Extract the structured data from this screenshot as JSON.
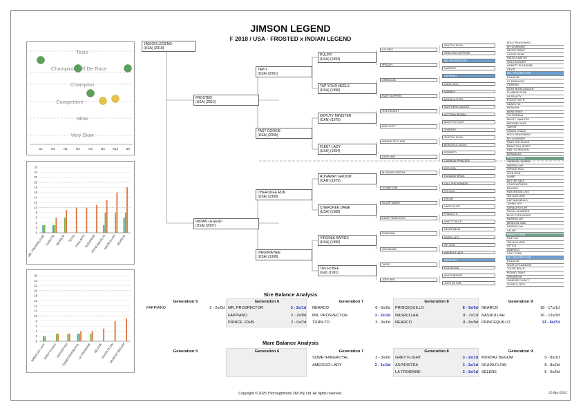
{
  "header": {
    "title": "JIMSON LEGEND",
    "subtitle": "F 2018 / USA · FROSTED x INDIAN LEGEND"
  },
  "dosage": {
    "bands": [
      "Tesio",
      "Champion",
      "Champion",
      "Competitive",
      "Slow",
      "Very Slow"
    ],
    "inline_labels": [
      "Chef De Race"
    ],
    "x_labels": [
      "S1",
      "E9",
      "N1",
      "N2",
      "N3",
      "N5",
      "N12",
      "N9"
    ],
    "points": [
      {
        "x": "S1",
        "level": "Tesio",
        "color": "green"
      },
      {
        "x": "E9",
        "level": "Tesio",
        "color": "green"
      },
      {
        "x": "S1",
        "level": "Champion/Chef",
        "color": "green"
      },
      {
        "x": "N2",
        "level": "Champion/Chef",
        "color": "green"
      },
      {
        "x": "N9",
        "level": "Champion/Chef",
        "color": "green"
      },
      {
        "x": "N3",
        "level": "Champion",
        "color": "green"
      },
      {
        "x": "N5",
        "level": "Competitive",
        "color": "yellow"
      },
      {
        "x": "N12",
        "level": "Competitive",
        "color": "yellow"
      }
    ]
  },
  "chart_data": [
    {
      "type": "bar",
      "y_ticks": [
        0,
        2,
        4,
        6,
        8,
        10,
        12,
        14,
        16,
        18,
        20,
        22,
        24,
        26
      ],
      "categories": [
        "MR. PROSPECTOR",
        "TURN-TO",
        "NEARCO",
        "TESIO",
        "PHALARIS",
        "BLENHEIM",
        "PRINCEQUILLO",
        "NASRULLAH",
        "NEARCO"
      ],
      "series": [
        {
          "color": "#3aa0a0",
          "values": [
            3,
            3,
            0,
            0,
            0,
            0,
            3,
            0,
            6
          ]
        },
        {
          "color": "#7ab648",
          "values": [
            3,
            3,
            6,
            0,
            0,
            0,
            8,
            8,
            8
          ]
        },
        {
          "color": "#e07a45",
          "values": [
            0,
            6,
            9,
            10,
            10,
            11,
            13,
            16,
            18
          ]
        }
      ]
    },
    {
      "type": "bar",
      "y_ticks": [
        0,
        2,
        4,
        6,
        8,
        10,
        12,
        14,
        16,
        18,
        20,
        22,
        24,
        26
      ],
      "categories": [
        "AMERIGO LADY",
        "GREY FLIGHT",
        "ASPIDISTRA",
        "SOMETHINGROYAL",
        "LA TROIENNE",
        "SELENE",
        "SCAPA FLOW",
        "MUMTAZ BEGUM"
      ],
      "series": [
        {
          "color": "#3aa0a0",
          "values": [
            2,
            0,
            0,
            3,
            0,
            0,
            0,
            0
          ]
        },
        {
          "color": "#7ab648",
          "values": [
            2,
            3,
            3,
            3,
            3,
            0,
            0,
            0
          ]
        },
        {
          "color": "#e07a45",
          "values": [
            0,
            3,
            3,
            4,
            4,
            5,
            8,
            9
          ]
        }
      ]
    }
  ],
  "pedigree": {
    "g1": [
      {
        "name": "JIMSON LEGEND",
        "info": "(USA) (2018)"
      }
    ],
    "g2": [
      {
        "name": "FROSTED",
        "info": "(USA) (2012)"
      },
      {
        "name": "INDIAN LEGEND",
        "info": "(USA) (2007)"
      }
    ],
    "g3": [
      {
        "name": "TAPIT",
        "info": "(USA) (2001)"
      },
      {
        "name": "FAST COOKIE",
        "info": "(USA) (2000)"
      },
      {
        "name": "CHEROKEE RUN",
        "info": "(USA) (1990)"
      },
      {
        "name": "VIRGINIA BEE",
        "info": "(USA) (1998)"
      }
    ],
    "g4": [
      {
        "name": "PULPIT",
        "info": "(USA) (1994)"
      },
      {
        "name": "TAP YOUR HEELS",
        "info": "(USA) (1996)"
      },
      {
        "name": "DEPUTY MINISTER",
        "info": "(CAN) (1979)"
      },
      {
        "name": "FLEET LADY",
        "info": "(USA) (1994)"
      },
      {
        "name": "RUNAWAY GROOM",
        "info": "(CAN) (1979)"
      },
      {
        "name": "CHEROKEE DAME",
        "info": "(USA) (1980)"
      },
      {
        "name": "VIRGINIA RAPIDS",
        "info": "(USA) (1990)"
      },
      {
        "name": "TASSO BEE",
        "info": "(null) (1991)"
      }
    ],
    "g5": [
      "A.P. INDY",
      "PREACH",
      "UNBRIDLED",
      "RUBY SLIPPERS",
      "VICE REGENT",
      "MINT COPY",
      "AVENUE OF FLAGS",
      "DEAR MIMI",
      "BLUSHING GROOM",
      "YONNIE GIRL",
      "SILVER SABER",
      "DAME FRANCESCA",
      "RIVERMAN",
      "VIRGINIANA",
      "TASSO",
      "JOE'S BEE"
    ],
    "g6": [
      {
        "n": "SEATTLE SLEW"
      },
      {
        "n": "WEEKEND SURPRISE"
      },
      {
        "n": "MR. PROSPECTOR",
        "hl": "blue"
      },
      {
        "n": "NARRATE"
      },
      {
        "n": "FAPPIANO",
        "hl": "blue"
      },
      {
        "n": "GANA FACIL"
      },
      {
        "n": "NIJINSKY"
      },
      {
        "n": "MOON GLITTER"
      },
      {
        "n": "NORTHERN DANCER"
      },
      {
        "n": "VICTORIA REGINA"
      },
      {
        "n": "BUNTY'S FLIGHT"
      },
      {
        "n": "SHARNEY"
      },
      {
        "n": "SEATTLE SLEW"
      },
      {
        "n": "BEAUTIFUL GLASS"
      },
      {
        "n": "ROBERTO"
      },
      {
        "n": "CARNIVAL PRINCESS"
      },
      {
        "n": "RED GOD"
      },
      {
        "n": "RUNAWAY BRIDE"
      },
      {
        "n": "CALL THE WITNESS"
      },
      {
        "n": "POCHILE"
      },
      {
        "n": "DRONE"
      },
      {
        "n": "HAPPY FLIRT"
      },
      {
        "n": "FRANCIS S."
      },
      {
        "n": "MAID TO RULE"
      },
      {
        "n": "NEVER BEND"
      },
      {
        "n": "RIVER LADY"
      },
      {
        "n": "SIR IVOR"
      },
      {
        "n": "AMERIGO LADY"
      },
      {
        "n": "FAPPIANO",
        "hl": "blue"
      },
      {
        "n": "ECSTACISM"
      },
      {
        "n": "KING'S BISHOP"
      },
      {
        "n": "JOE'S LIL GIRL"
      }
    ],
    "g7": [
      {
        "n": "BOLD REASONING"
      },
      {
        "n": "MY CHARMER"
      },
      {
        "n": "SECRETARIAT"
      },
      {
        "n": "LASSIE DEAR"
      },
      {
        "n": "RAISE A NATIVE"
      },
      {
        "n": "GOLD DIGGER"
      },
      {
        "n": "HONEST PLEASURE"
      },
      {
        "n": "STATE"
      },
      {
        "n": "MR. PROSPECTOR",
        "hl": "blue"
      },
      {
        "n": "KILLALOE"
      },
      {
        "n": "LE FABULEUX"
      },
      {
        "n": "CHAREDI"
      },
      {
        "n": "NORTHERN DANCER"
      },
      {
        "n": "FLAMING PAGE"
      },
      {
        "n": "IN REALITY"
      },
      {
        "n": "FOGGY NOTE"
      },
      {
        "n": "NEARCTIC"
      },
      {
        "n": "NATALMA"
      },
      {
        "n": "MENETRIER"
      },
      {
        "n": "VICTORIANA"
      },
      {
        "n": "BUNTY LAWLESS"
      },
      {
        "n": "BROOMFLIGHT"
      },
      {
        "n": "JAIPUR"
      },
      {
        "n": "GRASS SHACK"
      },
      {
        "n": "BOLD REASONING"
      },
      {
        "n": "MY CHARMER"
      },
      {
        "n": "PASS THE GLASS"
      },
      {
        "n": "BEAUTIFUL SPIRIT"
      },
      {
        "n": "HAIL TO REASON"
      },
      {
        "n": "BRAMALEA"
      },
      {
        "n": "PRINCE JOHN",
        "hl": "green"
      },
      {
        "n": "CARNIVAL QUEEN"
      },
      {
        "n": "NASRULLAH"
      },
      {
        "n": "SPRING RUN"
      },
      {
        "n": "WILD RISK"
      },
      {
        "n": "AIMEE"
      },
      {
        "n": "BETTER SELF"
      },
      {
        "n": "COUR WITNESS"
      },
      {
        "n": "BOLERO"
      },
      {
        "n": "RUE AROUE-OUS"
      },
      {
        "n": "SIR GAYLORD"
      },
      {
        "n": "CAP AND BELLS"
      },
      {
        "n": "JOHNS JOY"
      },
      {
        "n": "SARACEN FLIRT"
      },
      {
        "n": "ROYAL CHARGER"
      },
      {
        "n": "BLUE EYED MOMO"
      },
      {
        "n": "NASRULLAH"
      },
      {
        "n": "MEADOW MAID"
      },
      {
        "n": "NASRULLAH"
      },
      {
        "n": "LALUN"
      },
      {
        "n": "PRINCE JOHN",
        "hl": "green"
      },
      {
        "n": "NILE LILY"
      },
      {
        "n": "SIR GAYLORD"
      },
      {
        "n": "ATTICA"
      },
      {
        "n": "AMERIGO"
      },
      {
        "n": "LADY SYBIL"
      },
      {
        "n": "MR. PROSPECTOR",
        "hl": "blue"
      },
      {
        "n": "KILLALOE"
      },
      {
        "n": "WHAT A PLEASURE"
      },
      {
        "n": "TOUTE BELLE"
      },
      {
        "n": "ROUND TABLE"
      },
      {
        "n": "SPEARFISH"
      },
      {
        "n": "SUNRISE FLIGHT"
      },
      {
        "n": "SUSIE Q. RICE"
      }
    ]
  },
  "sire_balance": {
    "title": "Sire Balance Analysis",
    "gens": [
      {
        "head": "Generation 5",
        "shaded": false,
        "rows": [
          {
            "name": "FAPPIANO",
            "val": "2 - 2s/0d",
            "hl": false
          }
        ]
      },
      {
        "head": "Generation 6",
        "shaded": true,
        "rows": [
          {
            "name": "MR. PROSPECTOR",
            "val": "3 - 2s/1d",
            "hl": true
          },
          {
            "name": "FAPPIANO",
            "val": "2 - 2s/0d",
            "hl": false
          },
          {
            "name": "PRINCE JOHN",
            "val": "2 - 0s/2d",
            "hl": false
          }
        ]
      },
      {
        "head": "Generation 7",
        "shaded": false,
        "rows": [
          {
            "name": "NEARCO",
            "val": "6 - 6s/0d",
            "hl": false
          },
          {
            "name": "MR. PROSPECTOR",
            "val": "3 - 2s/1d",
            "hl": true
          },
          {
            "name": "TURN-TO",
            "val": "3 - 3s/0d",
            "hl": false
          }
        ]
      },
      {
        "head": "Generation 8",
        "shaded": true,
        "rows": [
          {
            "name": "PRINCEQUILLO",
            "val": "8 - 3s/5d",
            "hl": true
          },
          {
            "name": "NASRULLAH",
            "val": "8 - 7s/1d",
            "hl": false
          },
          {
            "name": "NEARCO",
            "val": "8 - 8s/0d",
            "hl": false
          }
        ]
      },
      {
        "head": "Generation 9",
        "shaded": false,
        "rows": [
          {
            "name": "NEARCO",
            "val": "18 - 17s/1d",
            "hl": false
          },
          {
            "name": "NASRULLAH",
            "val": "16 - 13s/3d",
            "hl": false
          },
          {
            "name": "PRINCEQUILLO",
            "val": "13 - 6s/7d",
            "hl": true
          }
        ]
      }
    ]
  },
  "mare_balance": {
    "title": "Mare Balance Analysis",
    "gens": [
      {
        "head": "Generation 5",
        "shaded": false,
        "rows": []
      },
      {
        "head": "Generation 6",
        "shaded": true,
        "rows": []
      },
      {
        "head": "Generation 7",
        "shaded": false,
        "rows": [
          {
            "name": "SOMETHINGROYAL",
            "val": "3 - 3s/0d",
            "hl": false
          },
          {
            "name": "AMERIGO LADY",
            "val": "2 - 1s/1d",
            "hl": true
          }
        ]
      },
      {
        "head": "Generation 8",
        "shaded": true,
        "rows": [
          {
            "name": "GREY FLIGHT",
            "val": "3 - 2s/1d",
            "hl": true
          },
          {
            "name": "ASPIDISTRA",
            "val": "3 - 2s/1d",
            "hl": true
          },
          {
            "name": "LA TROIENNE",
            "val": "3 - 2s/1d",
            "hl": true
          }
        ]
      },
      {
        "head": "Generation 9",
        "shaded": false,
        "rows": [
          {
            "name": "MUMTAZ BEGUM",
            "val": "9 - 8s/1d",
            "hl": false
          },
          {
            "name": "SCAPA FLOW",
            "val": "8 - 8s/0d",
            "hl": false
          },
          {
            "name": "SELENE",
            "val": "5 - 5s/0d",
            "hl": false
          }
        ]
      }
    ]
  },
  "footer": {
    "copyright": "Copyright © 2025 Thoroughbreds 360 Pty Ltd. All rights reserved.",
    "date": "15/Apr/2025"
  }
}
